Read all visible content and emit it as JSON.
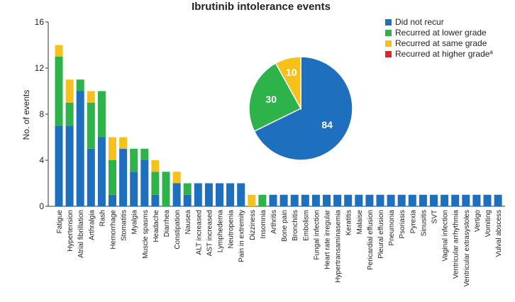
{
  "chart_data": [
    {
      "type": "bar",
      "stacked": true,
      "title": "Ibrutinib intolerance events",
      "ylabel": "No. of events",
      "xlabel": "",
      "ylim": [
        0,
        16
      ],
      "yticks": [
        0,
        4,
        8,
        12,
        16
      ],
      "categories": [
        "Fatigue",
        "Hypertension",
        "Atrial fibrillation",
        "Arthralgia",
        "Rash",
        "Hemorrhage",
        "Stomatitis",
        "Myalgia",
        "Muscle spasms",
        "Headache",
        "Diarrhea",
        "Constipation",
        "Nausea",
        "ALT increased",
        "AST increased",
        "Lymphedema",
        "Neutropenia",
        "Pain in extremity",
        "Dizziness",
        "Insomnia",
        "Arthritis",
        "Bone pain",
        "Bronchitis",
        "Embolism",
        "Fungal infection",
        "Heart rate irregular",
        "Hypertransaminasemia",
        "Keratitis",
        "Malaise",
        "Pericardial effusion",
        "Pleural effusion",
        "Pneumonia",
        "Psoriasis",
        "Pyrexia",
        "Sinusitis",
        "SVT",
        "Vaginal infection",
        "Ventricular arrhythmia",
        "Ventricular extrasystoles",
        "Vertigo",
        "Vomiting",
        "Vulval abscess"
      ],
      "series": [
        {
          "name": "Did not recur",
          "color": "#1f6fbf",
          "values": [
            7,
            7,
            10,
            5,
            6,
            1,
            5,
            3,
            4,
            1,
            0,
            2,
            1,
            2,
            2,
            2,
            2,
            2,
            0,
            0,
            1,
            1,
            1,
            1,
            1,
            1,
            1,
            1,
            1,
            1,
            1,
            1,
            1,
            1,
            1,
            1,
            1,
            1,
            1,
            1,
            1,
            1
          ]
        },
        {
          "name": "Recurred at lower grade",
          "color": "#2db34a",
          "values": [
            6,
            2,
            1,
            4,
            4,
            3,
            0,
            2,
            1,
            2,
            3,
            0,
            1,
            0,
            0,
            0,
            0,
            0,
            0,
            1,
            0,
            0,
            0,
            0,
            0,
            0,
            0,
            0,
            0,
            0,
            0,
            0,
            0,
            0,
            0,
            0,
            0,
            0,
            0,
            0,
            0,
            0
          ]
        },
        {
          "name": "Recurred at same grade",
          "color": "#f7c11b",
          "values": [
            1,
            2,
            0,
            1,
            0,
            2,
            1,
            0,
            0,
            1,
            0,
            1,
            0,
            0,
            0,
            0,
            0,
            0,
            1,
            0,
            0,
            0,
            0,
            0,
            0,
            0,
            0,
            0,
            0,
            0,
            0,
            0,
            0,
            0,
            0,
            0,
            0,
            0,
            0,
            0,
            0,
            0
          ]
        },
        {
          "name": "Recurred at higher grade",
          "name_superscript": "a",
          "color": "#d7262e",
          "values": [
            0,
            0,
            0,
            0,
            0,
            0,
            0,
            0,
            0,
            0,
            0,
            0,
            0,
            0,
            0,
            0,
            0,
            0,
            0,
            0,
            0,
            0,
            0,
            0,
            0,
            0,
            0,
            0,
            0,
            0,
            0,
            0,
            0,
            0,
            0,
            0,
            0,
            0,
            0,
            0,
            0,
            0
          ]
        }
      ],
      "legend": "top-right",
      "grid": false
    },
    {
      "type": "pie",
      "slices": [
        {
          "label": "84",
          "value": 84,
          "color": "#1f6fbf"
        },
        {
          "label": "30",
          "value": 30,
          "color": "#2db34a"
        },
        {
          "label": "10",
          "value": 10,
          "color": "#f7c11b"
        }
      ]
    }
  ]
}
